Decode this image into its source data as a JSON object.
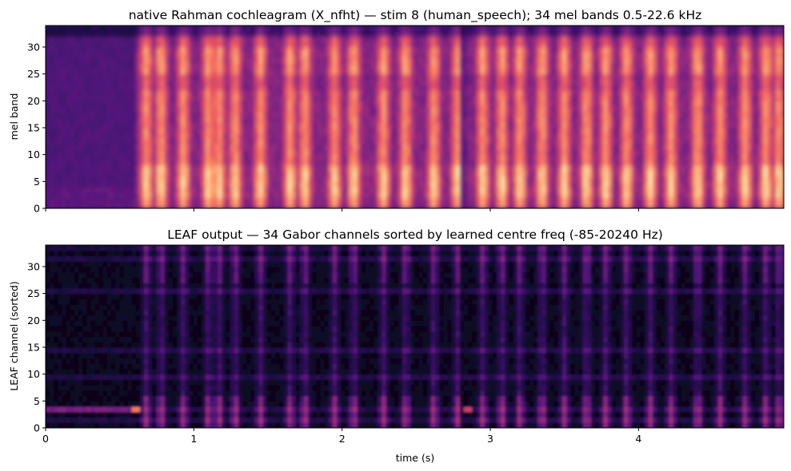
{
  "chart_data": [
    {
      "type": "heatmap",
      "title": "native Rahman cochleagram (X_nfht) — stim 8 (human_speech); 34 mel bands 0.5-22.6 kHz",
      "xlabel": "",
      "ylabel": "mel band",
      "xlim": [
        0,
        4.98
      ],
      "ylim": [
        0,
        34
      ],
      "xticks": [
        0,
        1,
        2,
        3,
        4
      ],
      "xtick_labels_shown": false,
      "yticks": [
        0,
        5,
        10,
        15,
        20,
        25,
        30
      ],
      "colormap": "magma",
      "grid": false,
      "regions": [
        {
          "t_start": 0.0,
          "t_end": 0.6,
          "description": "low-energy onset, dark purple"
        },
        {
          "t_start": 0.6,
          "t_end": 2.85,
          "description": "speech segment, bright low bands"
        },
        {
          "t_start": 2.85,
          "t_end": 4.98,
          "description": "speech segment, bright low bands"
        }
      ]
    },
    {
      "type": "heatmap",
      "title": "LEAF output — 34 Gabor channels sorted by learned centre freq (-85-20240 Hz)",
      "xlabel": "time (s)",
      "ylabel": "LEAF channel (sorted)",
      "xlim": [
        0,
        4.98
      ],
      "ylim": [
        0,
        34
      ],
      "xticks": [
        0,
        1,
        2,
        3,
        4
      ],
      "xtick_labels_shown": true,
      "yticks": [
        0,
        5,
        10,
        15,
        20,
        25,
        30
      ],
      "colormap": "magma",
      "grid": false
    }
  ],
  "colors": {
    "magma_low": "#000004",
    "magma_mid": "#b5367a",
    "magma_high": "#fcfdbf"
  }
}
